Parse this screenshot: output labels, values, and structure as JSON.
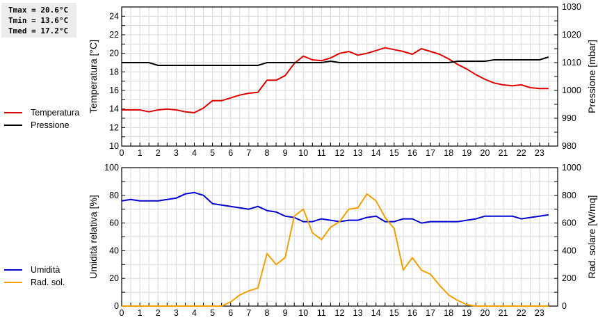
{
  "stats": {
    "tmax": "Tmax = 20.6°C",
    "tmin": "Tmin = 13.6°C",
    "tmed": "Tmed = 17.2°C"
  },
  "legend_top": [
    {
      "label": "Temperatura",
      "color": "#e00000"
    },
    {
      "label": "Pressione",
      "color": "#000000"
    }
  ],
  "legend_bottom": [
    {
      "label": "Umidità",
      "color": "#0000d0"
    },
    {
      "label": "Rad. sol.",
      "color": "#f5a000"
    }
  ],
  "chart_data": [
    {
      "type": "line",
      "title": "",
      "xlabel": "",
      "ylabel": "Temperatura [°C]",
      "ylabel_right": "Pressione [mbar]",
      "x_ticks": [
        0,
        1,
        2,
        3,
        4,
        5,
        6,
        7,
        8,
        9,
        10,
        11,
        12,
        13,
        14,
        15,
        16,
        17,
        18,
        19,
        20,
        21,
        22,
        23
      ],
      "ylim": [
        10,
        25
      ],
      "y_ticks": [
        10,
        12,
        14,
        16,
        18,
        20,
        22,
        24
      ],
      "ylim_right": [
        980,
        1030
      ],
      "y_ticks_right": [
        980,
        990,
        1000,
        1010,
        1020,
        1030
      ],
      "grid": true,
      "legend_position": "left",
      "x": [
        0,
        0.5,
        1,
        1.5,
        2,
        2.5,
        3,
        3.5,
        4,
        4.5,
        5,
        5.5,
        6,
        6.5,
        7,
        7.5,
        8,
        8.5,
        9,
        9.5,
        10,
        10.5,
        11,
        11.5,
        12,
        12.5,
        13,
        13.5,
        14,
        14.5,
        15,
        15.5,
        16,
        16.5,
        17,
        17.5,
        18,
        18.5,
        19,
        19.5,
        20,
        20.5,
        21,
        21.5,
        22,
        22.5,
        23,
        23.5
      ],
      "series": [
        {
          "name": "Temperatura",
          "axis": "left",
          "color": "#e00000",
          "values": [
            13.9,
            13.9,
            13.9,
            13.7,
            13.9,
            14.0,
            13.9,
            13.7,
            13.6,
            14.1,
            14.9,
            14.9,
            15.2,
            15.5,
            15.7,
            15.8,
            17.1,
            17.1,
            17.6,
            18.9,
            19.7,
            19.3,
            19.2,
            19.5,
            20.0,
            20.2,
            19.8,
            20.0,
            20.3,
            20.6,
            20.4,
            20.2,
            19.9,
            20.5,
            20.2,
            19.9,
            19.4,
            18.8,
            18.3,
            17.7,
            17.2,
            16.8,
            16.6,
            16.5,
            16.6,
            16.3,
            16.2,
            16.2
          ]
        },
        {
          "name": "Pressione",
          "axis": "right",
          "color": "#000000",
          "values": [
            1010,
            1010,
            1010,
            1010,
            1009,
            1009,
            1009,
            1009,
            1009,
            1009,
            1009,
            1009,
            1009,
            1009,
            1009,
            1009,
            1010,
            1010,
            1010,
            1010,
            1010,
            1010,
            1010,
            1010.5,
            1010,
            1010,
            1010,
            1010,
            1010,
            1010,
            1010,
            1010,
            1010,
            1010,
            1010,
            1010,
            1010,
            1010.5,
            1010.5,
            1010.5,
            1010.5,
            1011,
            1011,
            1011,
            1011,
            1011,
            1011,
            1012
          ]
        }
      ]
    },
    {
      "type": "line",
      "title": "",
      "xlabel": "",
      "ylabel": "Umidità relativa [%]",
      "ylabel_right": "Rad. solare [W/mq]",
      "x_ticks": [
        0,
        1,
        2,
        3,
        4,
        5,
        6,
        7,
        8,
        9,
        10,
        11,
        12,
        13,
        14,
        15,
        16,
        17,
        18,
        19,
        20,
        21,
        22,
        23
      ],
      "ylim": [
        0,
        100
      ],
      "y_ticks": [
        0,
        20,
        40,
        60,
        80,
        100
      ],
      "ylim_right": [
        0,
        1000
      ],
      "y_ticks_right": [
        0,
        200,
        400,
        600,
        800,
        1000
      ],
      "grid": true,
      "legend_position": "left",
      "x": [
        0,
        0.5,
        1,
        1.5,
        2,
        2.5,
        3,
        3.5,
        4,
        4.5,
        5,
        5.5,
        6,
        6.5,
        7,
        7.5,
        8,
        8.5,
        9,
        9.5,
        10,
        10.5,
        11,
        11.5,
        12,
        12.5,
        13,
        13.5,
        14,
        14.5,
        15,
        15.5,
        16,
        16.5,
        17,
        17.5,
        18,
        18.5,
        19,
        19.5,
        20,
        20.5,
        21,
        21.5,
        22,
        22.5,
        23,
        23.5
      ],
      "series": [
        {
          "name": "Umidità",
          "axis": "left",
          "color": "#0000d0",
          "values": [
            76,
            77,
            76,
            76,
            76,
            77,
            78,
            81,
            82,
            80,
            74,
            73,
            72,
            71,
            70,
            72,
            69,
            68,
            65,
            64,
            61,
            61,
            63,
            62,
            61,
            62,
            62,
            64,
            65,
            61,
            61,
            63,
            63,
            60,
            61,
            61,
            61,
            61,
            62,
            63,
            65,
            65,
            65,
            65,
            63,
            64,
            65,
            66
          ]
        },
        {
          "name": "Rad. sol.",
          "axis": "right",
          "color": "#f5a000",
          "values": [
            0,
            0,
            0,
            0,
            0,
            0,
            0,
            0,
            0,
            0,
            0,
            0,
            30,
            80,
            110,
            130,
            380,
            300,
            350,
            650,
            700,
            530,
            480,
            570,
            610,
            700,
            710,
            810,
            760,
            640,
            560,
            260,
            350,
            260,
            230,
            150,
            80,
            40,
            10,
            0,
            0,
            0,
            0,
            0,
            0,
            0,
            0,
            0
          ]
        }
      ]
    }
  ]
}
